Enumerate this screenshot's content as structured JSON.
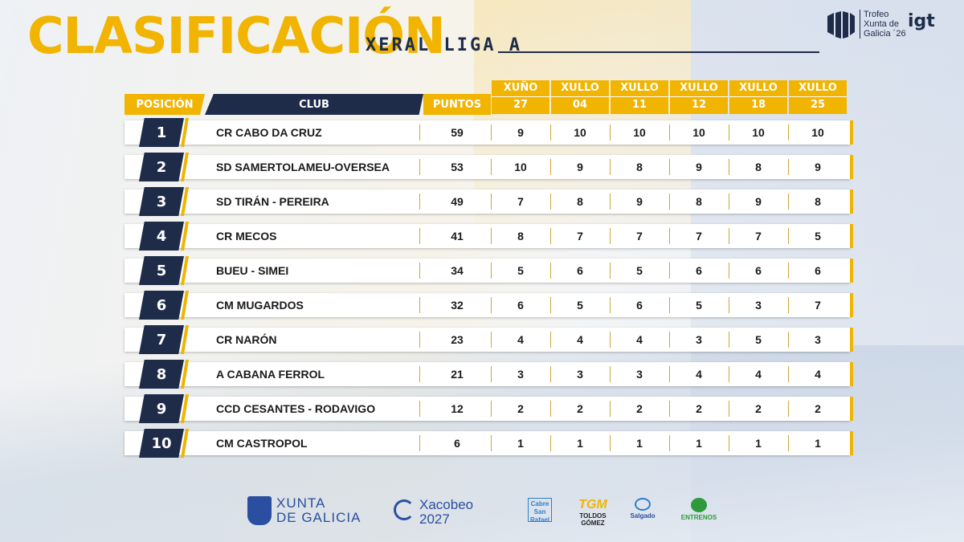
{
  "header": {
    "title": "CLASIFICACIÓN",
    "subtitle": "XERAL LIGA A",
    "trofeo_lines": [
      "Trofeo",
      "Xunta de",
      "Galicia ´26"
    ],
    "igt_logo": "igt"
  },
  "table": {
    "col_position": "POSICIÓN",
    "col_club": "CLUB",
    "col_points": "PUNTOS",
    "dates": [
      {
        "month": "XUÑO",
        "day": "27"
      },
      {
        "month": "XULLO",
        "day": "04"
      },
      {
        "month": "XULLO",
        "day": "11"
      },
      {
        "month": "XULLO",
        "day": "12"
      },
      {
        "month": "XULLO",
        "day": "18"
      },
      {
        "month": "XULLO",
        "day": "25"
      }
    ],
    "rows": [
      {
        "rank": "1",
        "club": "CR CABO DA CRUZ",
        "points": "59",
        "scores": [
          "9",
          "10",
          "10",
          "10",
          "10",
          "10"
        ]
      },
      {
        "rank": "2",
        "club": "SD SAMERTOLAMEU-OVERSEA",
        "points": "53",
        "scores": [
          "10",
          "9",
          "8",
          "9",
          "8",
          "9"
        ]
      },
      {
        "rank": "3",
        "club": "SD TIRÁN - PEREIRA",
        "points": "49",
        "scores": [
          "7",
          "8",
          "9",
          "8",
          "9",
          "8"
        ]
      },
      {
        "rank": "4",
        "club": "CR MECOS",
        "points": "41",
        "scores": [
          "8",
          "7",
          "7",
          "7",
          "7",
          "5"
        ]
      },
      {
        "rank": "5",
        "club": "BUEU - SIMEI",
        "points": "34",
        "scores": [
          "5",
          "6",
          "5",
          "6",
          "6",
          "6"
        ]
      },
      {
        "rank": "6",
        "club": "CM MUGARDOS",
        "points": "32",
        "scores": [
          "6",
          "5",
          "6",
          "5",
          "3",
          "7"
        ]
      },
      {
        "rank": "7",
        "club": "CR NARÓN",
        "points": "23",
        "scores": [
          "4",
          "4",
          "4",
          "3",
          "5",
          "3"
        ]
      },
      {
        "rank": "8",
        "club": "A CABANA FERROL",
        "points": "21",
        "scores": [
          "3",
          "3",
          "3",
          "4",
          "4",
          "4"
        ]
      },
      {
        "rank": "9",
        "club": "CCD CESANTES - RODAVIGO",
        "points": "12",
        "scores": [
          "2",
          "2",
          "2",
          "2",
          "2",
          "2"
        ]
      },
      {
        "rank": "10",
        "club": "CM CASTROPOL",
        "points": "6",
        "scores": [
          "1",
          "1",
          "1",
          "1",
          "1",
          "1"
        ]
      }
    ]
  },
  "footer": {
    "xunta_lines": [
      "XUNTA",
      "DE GALICIA"
    ],
    "xacobeo_lines": [
      "Xacobeo",
      "2027"
    ],
    "sponsors": [
      {
        "name": "Cabreiroá San Rafael",
        "lines": [
          "Cabre",
          "San",
          "Rafael"
        ]
      },
      {
        "name": "Toldos Gómez",
        "mark": "TGM",
        "label": "TOLDOS GÓMEZ"
      },
      {
        "name": "Salgado",
        "label": "Salgado"
      },
      {
        "name": "Entrenos",
        "label": "ENTRENOS"
      }
    ]
  },
  "colors": {
    "accent_yellow": "#f1b400",
    "navy": "#1e2c4a",
    "brand_blue": "#2a4fa0"
  }
}
